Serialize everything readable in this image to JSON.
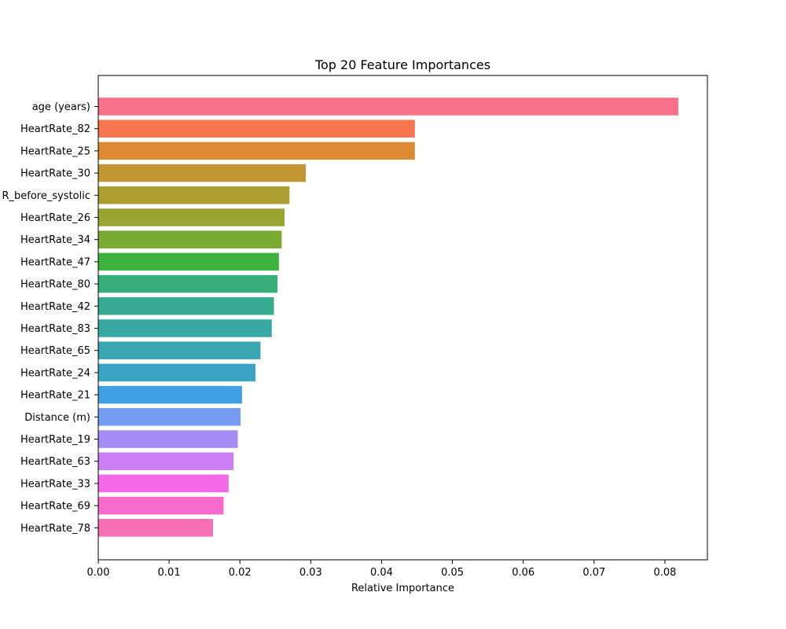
{
  "chart_data": {
    "type": "bar",
    "orientation": "horizontal",
    "title": "Top 20 Feature Importances",
    "xlabel": "Relative Importance",
    "ylabel": "",
    "xlim": [
      0.0,
      0.086
    ],
    "xticks": [
      "0.00",
      "0.01",
      "0.02",
      "0.03",
      "0.04",
      "0.05",
      "0.06",
      "0.07",
      "0.08"
    ],
    "grid": false,
    "legend": "none",
    "categories": [
      "age (years)",
      "HeartRate_82",
      "HeartRate_25",
      "HeartRate_30",
      "R_before_systolic",
      "HeartRate_26",
      "HeartRate_34",
      "HeartRate_47",
      "HeartRate_80",
      "HeartRate_42",
      "HeartRate_83",
      "HeartRate_65",
      "HeartRate_24",
      "HeartRate_21",
      "Distance (m)",
      "HeartRate_19",
      "HeartRate_63",
      "HeartRate_33",
      "HeartRate_69",
      "HeartRate_78"
    ],
    "values": [
      0.0819,
      0.0447,
      0.0447,
      0.0293,
      0.027,
      0.0263,
      0.0259,
      0.0255,
      0.0253,
      0.0248,
      0.0245,
      0.0229,
      0.0222,
      0.0203,
      0.0201,
      0.0197,
      0.0191,
      0.0184,
      0.0177,
      0.0162
    ],
    "colors": [
      "#f77189",
      "#f7754f",
      "#dd8a34",
      "#c39634",
      "#ae9d31",
      "#99a431",
      "#7aaa31",
      "#39b33c",
      "#35ae79",
      "#37ab91",
      "#38a9a2",
      "#39a6b2",
      "#3ba3c3",
      "#41a0e4",
      "#769bf5",
      "#a58cf4",
      "#cb7ff4",
      "#f469ea",
      "#f66bcc",
      "#f66eb3"
    ]
  }
}
